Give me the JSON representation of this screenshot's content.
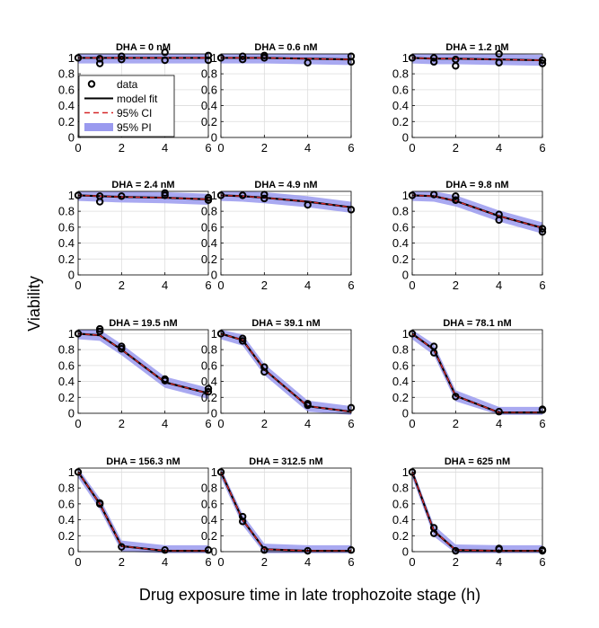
{
  "figure": {
    "ylabel": "Viability",
    "xlabel": "Drug exposure time in late trophozoite stage (h)"
  },
  "legend": {
    "items": [
      {
        "label": "data"
      },
      {
        "label": "model fit"
      },
      {
        "label": "95% CI"
      },
      {
        "label": "95% PI"
      }
    ]
  },
  "colors": {
    "data": "#000000",
    "fit": "#000000",
    "ci": "#d62728",
    "pi": "#9a9aef",
    "grid": "#dcdcdc",
    "axis": "#000000"
  },
  "chart_data": [
    {
      "title": "DHA = 0 nM",
      "type": "line",
      "x": [
        0,
        1,
        2,
        4,
        6
      ],
      "fit": [
        1,
        1,
        1,
        1,
        1
      ],
      "pi_half": 0.07,
      "data": [
        [
          0,
          1
        ],
        [
          1,
          0.93
        ],
        [
          1,
          0.99
        ],
        [
          2,
          0.98
        ],
        [
          2,
          1.02
        ],
        [
          4,
          1.07
        ],
        [
          4,
          0.97
        ],
        [
          6,
          1.03
        ],
        [
          6,
          0.97
        ]
      ],
      "xticks": [
        0,
        2,
        4,
        6
      ],
      "yticks": [
        0,
        0.2,
        0.4,
        0.6,
        0.8,
        1
      ],
      "xlim": [
        0,
        6
      ],
      "ylim": [
        0,
        1.05
      ],
      "grid": true
    },
    {
      "title": "DHA = 0.6 nM",
      "type": "line",
      "x": [
        0,
        1,
        2,
        4,
        6
      ],
      "fit": [
        1,
        1,
        1,
        0.99,
        0.98
      ],
      "pi_half": 0.07,
      "data": [
        [
          0,
          1
        ],
        [
          1,
          0.98
        ],
        [
          1,
          1.02
        ],
        [
          2,
          1
        ],
        [
          2,
          1.03
        ],
        [
          4,
          0.94
        ],
        [
          6,
          0.95
        ],
        [
          6,
          1.02
        ]
      ],
      "xticks": [
        0,
        2,
        4,
        6
      ],
      "yticks": [
        0,
        0.2,
        0.4,
        0.6,
        0.8,
        1
      ],
      "xlim": [
        0,
        6
      ],
      "ylim": [
        0,
        1.05
      ],
      "grid": true
    },
    {
      "title": "DHA = 1.2 nM",
      "type": "line",
      "x": [
        0,
        1,
        2,
        4,
        6
      ],
      "fit": [
        1,
        0.99,
        0.99,
        0.98,
        0.97
      ],
      "pi_half": 0.07,
      "data": [
        [
          0,
          1
        ],
        [
          1,
          0.95
        ],
        [
          1,
          1
        ],
        [
          2,
          0.9
        ],
        [
          2,
          0.98
        ],
        [
          4,
          1.05
        ],
        [
          4,
          0.94
        ],
        [
          6,
          0.93
        ],
        [
          6,
          0.97
        ]
      ],
      "xticks": [
        0,
        2,
        4,
        6
      ],
      "yticks": [
        0,
        0.2,
        0.4,
        0.6,
        0.8,
        1
      ],
      "xlim": [
        0,
        6
      ],
      "ylim": [
        0,
        1.05
      ],
      "grid": true
    },
    {
      "title": "DHA = 2.4 nM",
      "type": "line",
      "x": [
        0,
        1,
        2,
        4,
        6
      ],
      "fit": [
        1,
        0.99,
        0.98,
        0.97,
        0.95
      ],
      "pi_half": 0.07,
      "data": [
        [
          0,
          1
        ],
        [
          1,
          0.92
        ],
        [
          1,
          0.99
        ],
        [
          2,
          0.99
        ],
        [
          4,
          1
        ],
        [
          4,
          1.03
        ],
        [
          6,
          0.94
        ],
        [
          6,
          0.97
        ]
      ],
      "xticks": [
        0,
        2,
        4,
        6
      ],
      "yticks": [
        0,
        0.2,
        0.4,
        0.6,
        0.8,
        1
      ],
      "xlim": [
        0,
        6
      ],
      "ylim": [
        0,
        1.05
      ],
      "grid": true
    },
    {
      "title": "DHA = 4.9 nM",
      "type": "line",
      "x": [
        0,
        1,
        2,
        4,
        6
      ],
      "fit": [
        1,
        0.99,
        0.97,
        0.92,
        0.85
      ],
      "pi_half": 0.07,
      "data": [
        [
          0,
          1
        ],
        [
          1,
          1
        ],
        [
          2,
          0.96
        ],
        [
          2,
          1.01
        ],
        [
          4,
          0.88
        ],
        [
          6,
          0.82
        ]
      ],
      "xticks": [
        0,
        2,
        4,
        6
      ],
      "yticks": [
        0,
        0.2,
        0.4,
        0.6,
        0.8,
        1
      ],
      "xlim": [
        0,
        6
      ],
      "ylim": [
        0,
        1.05
      ],
      "grid": true
    },
    {
      "title": "DHA = 9.8 nM",
      "type": "line",
      "x": [
        0,
        1,
        2,
        4,
        6
      ],
      "fit": [
        1,
        0.99,
        0.93,
        0.74,
        0.59
      ],
      "pi_half": 0.07,
      "data": [
        [
          0,
          1
        ],
        [
          1,
          1.01
        ],
        [
          2,
          0.94
        ],
        [
          2,
          0.99
        ],
        [
          4,
          0.69
        ],
        [
          4,
          0.76
        ],
        [
          6,
          0.54
        ],
        [
          6,
          0.58
        ]
      ],
      "xticks": [
        0,
        2,
        4,
        6
      ],
      "yticks": [
        0,
        0.2,
        0.4,
        0.6,
        0.8,
        1
      ],
      "xlim": [
        0,
        6
      ],
      "ylim": [
        0,
        1.05
      ],
      "grid": true
    },
    {
      "title": "DHA = 19.5 nM",
      "type": "line",
      "x": [
        0,
        1,
        2,
        4,
        6
      ],
      "fit": [
        1,
        0.98,
        0.8,
        0.39,
        0.25
      ],
      "pi_half": 0.07,
      "data": [
        [
          0,
          1
        ],
        [
          1,
          1.03
        ],
        [
          1,
          1.06
        ],
        [
          2,
          0.81
        ],
        [
          2,
          0.84
        ],
        [
          4,
          0.41
        ],
        [
          4,
          0.43
        ],
        [
          6,
          0.27
        ],
        [
          6,
          0.31
        ]
      ],
      "xticks": [
        0,
        2,
        4,
        6
      ],
      "yticks": [
        0,
        0.2,
        0.4,
        0.6,
        0.8,
        1
      ],
      "xlim": [
        0,
        6
      ],
      "ylim": [
        0,
        1.05
      ],
      "grid": true
    },
    {
      "title": "DHA = 39.1 nM",
      "type": "line",
      "x": [
        0,
        1,
        2,
        4,
        6
      ],
      "fit": [
        1,
        0.92,
        0.55,
        0.09,
        0.02
      ],
      "pi_half": 0.07,
      "data": [
        [
          0,
          1
        ],
        [
          1,
          0.91
        ],
        [
          1,
          0.94
        ],
        [
          2,
          0.52
        ],
        [
          2,
          0.58
        ],
        [
          4,
          0.1
        ],
        [
          4,
          0.12
        ],
        [
          6,
          0.07
        ]
      ],
      "xticks": [
        0,
        2,
        4,
        6
      ],
      "yticks": [
        0,
        0.2,
        0.4,
        0.6,
        0.8,
        1
      ],
      "xlim": [
        0,
        6
      ],
      "ylim": [
        0,
        1.05
      ],
      "grid": true
    },
    {
      "title": "DHA = 78.1 nM",
      "type": "line",
      "x": [
        0,
        1,
        2,
        4,
        6
      ],
      "fit": [
        1,
        0.8,
        0.22,
        0.01,
        0.01
      ],
      "pi_half": 0.07,
      "data": [
        [
          0,
          1
        ],
        [
          1,
          0.76
        ],
        [
          1,
          0.84
        ],
        [
          2,
          0.21
        ],
        [
          4,
          0.02
        ],
        [
          6,
          0.04
        ],
        [
          6,
          0.05
        ]
      ],
      "xticks": [
        0,
        2,
        4,
        6
      ],
      "yticks": [
        0,
        0.2,
        0.4,
        0.6,
        0.8,
        1
      ],
      "xlim": [
        0,
        6
      ],
      "ylim": [
        0,
        1.05
      ],
      "grid": true
    },
    {
      "title": "DHA = 156.3 nM",
      "type": "line",
      "x": [
        0,
        1,
        2,
        4,
        6
      ],
      "fit": [
        1,
        0.6,
        0.07,
        0.01,
        0.01
      ],
      "pi_half": 0.07,
      "data": [
        [
          0,
          1
        ],
        [
          1,
          0.6
        ],
        [
          1,
          0.61
        ],
        [
          2,
          0.06
        ],
        [
          4,
          0.02
        ],
        [
          6,
          0.02
        ]
      ],
      "xticks": [
        0,
        2,
        4,
        6
      ],
      "yticks": [
        0,
        0.2,
        0.4,
        0.6,
        0.8,
        1
      ],
      "xlim": [
        0,
        6
      ],
      "ylim": [
        0,
        1.05
      ],
      "grid": true
    },
    {
      "title": "DHA = 312.5 nM",
      "type": "line",
      "x": [
        0,
        1,
        2,
        4,
        6
      ],
      "fit": [
        1,
        0.4,
        0.03,
        0.01,
        0.01
      ],
      "pi_half": 0.07,
      "data": [
        [
          0,
          1
        ],
        [
          1,
          0.38
        ],
        [
          1,
          0.44
        ],
        [
          2,
          0.02
        ],
        [
          4,
          0.01
        ],
        [
          6,
          0.02
        ]
      ],
      "xticks": [
        0,
        2,
        4,
        6
      ],
      "yticks": [
        0,
        0.2,
        0.4,
        0.6,
        0.8,
        1
      ],
      "xlim": [
        0,
        6
      ],
      "ylim": [
        0,
        1.05
      ],
      "grid": true
    },
    {
      "title": "DHA = 625 nM",
      "type": "line",
      "x": [
        0,
        1,
        2,
        4,
        6
      ],
      "fit": [
        1,
        0.26,
        0.02,
        0.01,
        0.01
      ],
      "pi_half": 0.07,
      "data": [
        [
          0,
          1
        ],
        [
          1,
          0.23
        ],
        [
          1,
          0.3
        ],
        [
          2,
          0.01
        ],
        [
          4,
          0.03
        ],
        [
          4,
          0.04
        ],
        [
          6,
          0.01
        ],
        [
          6,
          0.02
        ]
      ],
      "xticks": [
        0,
        2,
        4,
        6
      ],
      "yticks": [
        0,
        0.2,
        0.4,
        0.6,
        0.8,
        1
      ],
      "xlim": [
        0,
        6
      ],
      "ylim": [
        0,
        1.05
      ],
      "grid": true
    }
  ]
}
